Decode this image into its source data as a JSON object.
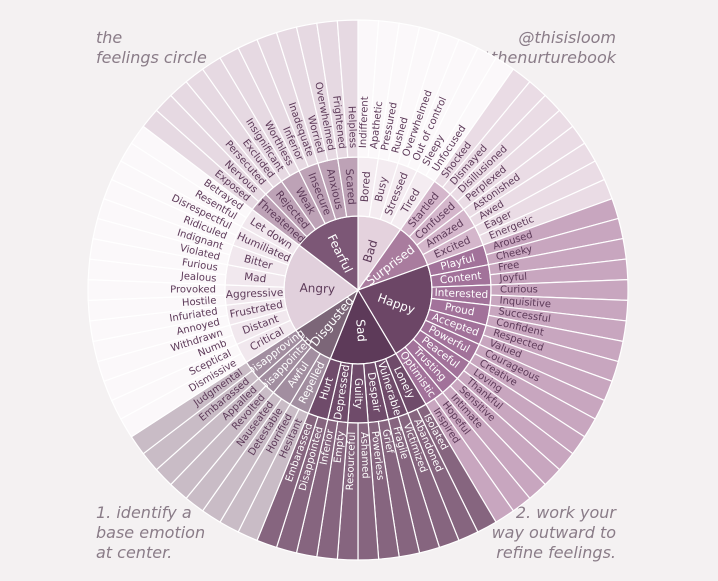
{
  "header": {
    "title_line1": "the",
    "title_line2": "feelings circle",
    "handle": "@thisisloom",
    "hashtag": "#thenurturebook"
  },
  "footer": {
    "step1": "1. identify a\nbase emotion\nat center.",
    "step2": "2. work your\nway outward to\nrefine feelings."
  },
  "wheel": [
    {
      "name": "Bad",
      "children": [
        {
          "name": "Bored",
          "children": [
            "Indifferent",
            "Apathetic"
          ]
        },
        {
          "name": "Busy",
          "children": [
            "Pressured",
            "Rushed"
          ]
        },
        {
          "name": "Stressed",
          "children": [
            "Overwhelmed",
            "Out of control"
          ]
        },
        {
          "name": "Tired",
          "children": [
            "Sleepy",
            "Unfocused"
          ]
        }
      ]
    },
    {
      "name": "Surprised",
      "children": [
        {
          "name": "Startled",
          "children": [
            "Shocked",
            "Dismayed"
          ]
        },
        {
          "name": "Confused",
          "children": [
            "Disillusioned",
            "Perplexed"
          ]
        },
        {
          "name": "Amazed",
          "children": [
            "Astonished",
            "Awed"
          ]
        },
        {
          "name": "Excited",
          "children": [
            "Eager",
            "Energetic"
          ]
        }
      ]
    },
    {
      "name": "Happy",
      "children": [
        {
          "name": "Playful",
          "children": [
            "Aroused",
            "Cheeky"
          ]
        },
        {
          "name": "Content",
          "children": [
            "Free",
            "Joyful"
          ]
        },
        {
          "name": "Interested",
          "children": [
            "Curious",
            "Inquisitive"
          ]
        },
        {
          "name": "Proud",
          "children": [
            "Successful",
            "Confident"
          ]
        },
        {
          "name": "Accepted",
          "children": [
            "Respected",
            "Valued"
          ]
        },
        {
          "name": "Powerful",
          "children": [
            "Courageous",
            "Creative"
          ]
        },
        {
          "name": "Peaceful",
          "children": [
            "Loving",
            "Thankful"
          ]
        },
        {
          "name": "Trusting",
          "children": [
            "Sensitive",
            "Intimate"
          ]
        },
        {
          "name": "Optimistic",
          "children": [
            "Hopeful",
            "Inspired"
          ]
        }
      ]
    },
    {
      "name": "Sad",
      "children": [
        {
          "name": "Lonely",
          "children": [
            "Isolated",
            "Abandoned"
          ]
        },
        {
          "name": "Vulnerable",
          "children": [
            "Victimized",
            "Fragile"
          ]
        },
        {
          "name": "Despair",
          "children": [
            "Grief",
            "Powerless"
          ]
        },
        {
          "name": "Guilty",
          "children": [
            "Ashamed",
            "Resourceful"
          ]
        },
        {
          "name": "Depressed",
          "children": [
            "Empty",
            "Inferior"
          ]
        },
        {
          "name": "Hurt",
          "children": [
            "Disappointed",
            "Embarassed"
          ]
        }
      ]
    },
    {
      "name": "Disgusted",
      "children": [
        {
          "name": "Repelled",
          "children": [
            "Hesitant",
            "Horrified"
          ]
        },
        {
          "name": "Awful",
          "children": [
            "Detestable",
            "Nauseated"
          ]
        },
        {
          "name": "Disappointed",
          "children": [
            "Revolted",
            "Appalled"
          ]
        },
        {
          "name": "Disapproving",
          "children": [
            "Embarassed",
            "Judgmental"
          ]
        }
      ]
    },
    {
      "name": "Angry",
      "children": [
        {
          "name": "Critical",
          "children": [
            "Dismissive",
            "Sceptical"
          ]
        },
        {
          "name": "Distant",
          "children": [
            "Numb",
            "Withdrawn"
          ]
        },
        {
          "name": "Frustrated",
          "children": [
            "Annoyed",
            "Infuriated"
          ]
        },
        {
          "name": "Aggressive",
          "children": [
            "Hostile",
            "Provoked"
          ]
        },
        {
          "name": "Mad",
          "children": [
            "Jealous",
            "Furious"
          ]
        },
        {
          "name": "Bitter",
          "children": [
            "Violated",
            "Indignant"
          ]
        },
        {
          "name": "Humiliated",
          "children": [
            "Ridiculed",
            "Disrespectful"
          ]
        },
        {
          "name": "Let down",
          "children": [
            "Resentful",
            "Betrayed"
          ]
        }
      ]
    },
    {
      "name": "Fearful",
      "children": [
        {
          "name": "Threatened",
          "children": [
            "Exposed",
            "Nervous"
          ]
        },
        {
          "name": "Rejected",
          "children": [
            "Persecuted",
            "Excluded"
          ]
        },
        {
          "name": "Weak",
          "children": [
            "Insignificant",
            "Worthless"
          ]
        },
        {
          "name": "Insecure",
          "children": [
            "Inferior",
            "Inadequate"
          ]
        },
        {
          "name": "Anxious",
          "children": [
            "Worried",
            "Overwhelmed"
          ]
        },
        {
          "name": "Scared",
          "children": [
            "Frightened",
            "Helpless"
          ]
        }
      ]
    }
  ],
  "colors": {
    "background": "#f4f1f2",
    "label": "#8a7c88",
    "ring_border": "#ffffff",
    "Bad": [
      "#e4d2dd",
      "#f4ecf1",
      "#fbf8fa"
    ],
    "Surprised": [
      "#a97c9e",
      "#d4b6cb",
      "#eadce5"
    ],
    "Happy": [
      "#6c4666",
      "#a2729a",
      "#c8a6bf"
    ],
    "Sad": [
      "#5d3a59",
      "#6f4b6a",
      "#86657f"
    ],
    "Disgusted": [
      "#7c6678",
      "#a28ea0",
      "#c9bcc6"
    ],
    "Angry": [
      "#e1d0dc",
      "#f1e8ee",
      "#fbf8fa"
    ],
    "Fearful": [
      "#7c5776",
      "#bda2b6",
      "#e6d9e2"
    ]
  }
}
